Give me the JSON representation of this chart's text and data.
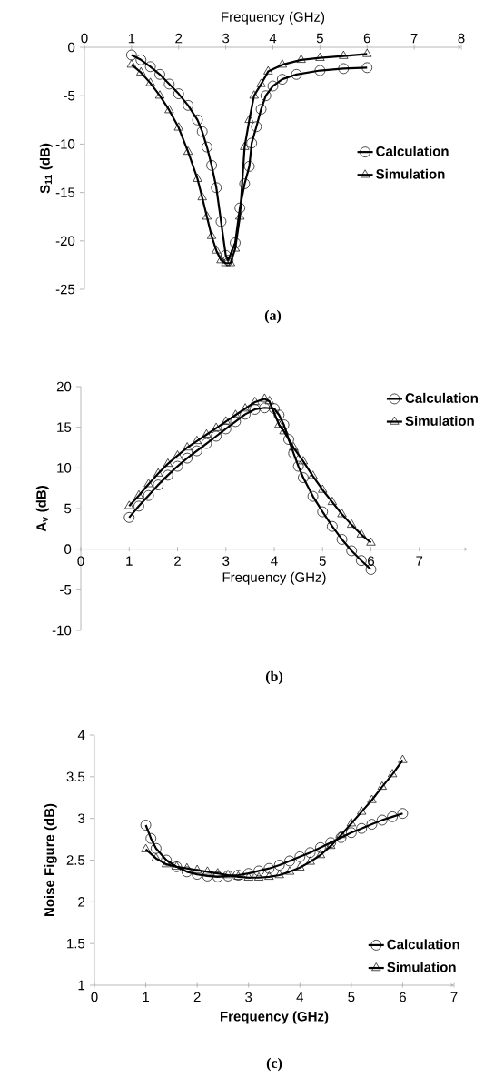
{
  "chart_data": [
    {
      "type": "line",
      "xlabel": "Frequency (GHz)",
      "ylabel": "S$_{11}$ (dB)",
      "xlim": [
        0,
        8
      ],
      "ylim": [
        -25,
        0
      ],
      "xticks": [
        0,
        1,
        2,
        3,
        4,
        5,
        6,
        7,
        8
      ],
      "yticks": [
        -25,
        -20,
        -15,
        -10,
        -5,
        0
      ],
      "legend": "right",
      "annotations": [
        "(a)"
      ],
      "series": [
        {
          "name": "Calculation",
          "color": "#000000",
          "marker": "circle",
          "x": [
            1.0,
            1.2,
            1.4,
            1.6,
            1.8,
            2.0,
            2.2,
            2.4,
            2.5,
            2.6,
            2.7,
            2.8,
            2.9,
            3.0,
            3.05,
            3.2,
            3.3,
            3.4,
            3.5,
            3.55,
            3.65,
            3.75,
            3.85,
            4.0,
            4.2,
            4.5,
            5.0,
            5.5,
            6.0
          ],
          "values": [
            -0.8,
            -1.3,
            -2.0,
            -2.8,
            -3.8,
            -4.8,
            -6.0,
            -7.5,
            -8.7,
            -10.3,
            -12.2,
            -14.5,
            -18.0,
            -21.5,
            -22.0,
            -20.2,
            -16.6,
            -14.1,
            -12.3,
            -9.9,
            -8.2,
            -6.4,
            -5.0,
            -4.0,
            -3.3,
            -2.8,
            -2.4,
            -2.2,
            -2.1
          ]
        },
        {
          "name": "Simulation",
          "color": "#000000",
          "marker": "triangle",
          "x": [
            1.0,
            1.2,
            1.4,
            1.6,
            1.8,
            2.0,
            2.2,
            2.4,
            2.5,
            2.6,
            2.7,
            2.8,
            2.9,
            3.0,
            3.1,
            3.2,
            3.3,
            3.4,
            3.5,
            3.6,
            3.75,
            3.9,
            4.2,
            4.6,
            5.0,
            5.5,
            6.0
          ],
          "values": [
            -1.8,
            -2.6,
            -3.7,
            -5.0,
            -6.5,
            -8.3,
            -10.8,
            -13.6,
            -15.5,
            -17.5,
            -19.5,
            -21.0,
            -22.0,
            -22.3,
            -22.3,
            -20.8,
            -17.5,
            -10.3,
            -7.5,
            -5.0,
            -3.8,
            -2.5,
            -1.8,
            -1.3,
            -1.1,
            -0.9,
            -0.7
          ]
        }
      ]
    },
    {
      "type": "line",
      "xlabel": "Frequency (GHz)",
      "ylabel": "A$_{v}$ (dB)",
      "xlim": [
        0,
        8
      ],
      "ylim": [
        -10,
        20
      ],
      "xticks": [
        0,
        1,
        2,
        3,
        4,
        5,
        6,
        7
      ],
      "yticks": [
        -10,
        -5,
        0,
        5,
        10,
        15,
        20
      ],
      "legend": "top right",
      "annotations": [
        "(b)"
      ],
      "series": [
        {
          "name": "Calculation",
          "color": "#000000",
          "marker": "circle",
          "x": [
            1.0,
            1.2,
            1.4,
            1.6,
            1.8,
            2.0,
            2.2,
            2.4,
            2.6,
            2.8,
            3.0,
            3.2,
            3.4,
            3.6,
            3.8,
            4.0,
            4.1,
            4.2,
            4.3,
            4.4,
            4.5,
            4.6,
            4.8,
            5.0,
            5.2,
            5.4,
            5.6,
            5.8,
            6.0
          ],
          "values": [
            3.9,
            5.3,
            6.6,
            7.9,
            9.1,
            10.2,
            11.2,
            12.1,
            13.0,
            13.9,
            14.8,
            15.7,
            16.6,
            17.2,
            17.4,
            17.3,
            16.5,
            15.3,
            13.5,
            11.8,
            10.2,
            8.8,
            6.5,
            4.6,
            2.8,
            1.2,
            -0.2,
            -1.4,
            -2.5
          ]
        },
        {
          "name": "Simulation",
          "color": "#000000",
          "marker": "triangle",
          "x": [
            1.0,
            1.2,
            1.4,
            1.6,
            1.8,
            2.0,
            2.2,
            2.4,
            2.6,
            2.8,
            3.0,
            3.2,
            3.4,
            3.6,
            3.8,
            3.9,
            4.0,
            4.1,
            4.2,
            4.4,
            4.6,
            4.8,
            5.0,
            5.2,
            5.4,
            5.6,
            5.8,
            6.0
          ],
          "values": [
            5.3,
            6.6,
            8.0,
            9.3,
            10.5,
            11.5,
            12.5,
            13.3,
            14.1,
            14.9,
            15.7,
            16.5,
            17.3,
            18.1,
            18.5,
            18.2,
            null,
            15.3,
            14.5,
            12.5,
            10.8,
            9.0,
            7.3,
            5.8,
            4.3,
            3.0,
            1.8,
            0.8
          ]
        }
      ]
    },
    {
      "type": "line",
      "xlabel": "Frequency (GHz)",
      "ylabel": "Noise Figure (dB)",
      "xlim": [
        0,
        7
      ],
      "ylim": [
        1,
        4
      ],
      "xticks": [
        0,
        1,
        2,
        3,
        4,
        5,
        6,
        7
      ],
      "yticks": [
        1,
        1.5,
        2,
        2.5,
        3,
        3.5,
        4
      ],
      "legend": "bottom right",
      "annotations": [
        "(c)"
      ],
      "series": [
        {
          "name": "Calculation",
          "color": "#000000",
          "marker": "circle",
          "x": [
            1.0,
            1.1,
            1.2,
            1.4,
            1.6,
            1.8,
            2.0,
            2.2,
            2.4,
            2.6,
            2.8,
            3.0,
            3.2,
            3.4,
            3.6,
            3.8,
            4.0,
            4.2,
            4.4,
            4.6,
            4.8,
            5.0,
            5.2,
            5.4,
            5.6,
            5.8,
            6.0
          ],
          "values": [
            2.92,
            2.76,
            2.64,
            2.5,
            2.42,
            2.36,
            2.33,
            2.31,
            2.3,
            2.31,
            2.32,
            2.34,
            2.37,
            2.4,
            2.44,
            2.49,
            2.54,
            2.59,
            2.65,
            2.71,
            2.77,
            2.83,
            2.88,
            2.93,
            2.98,
            3.02,
            3.06
          ]
        },
        {
          "name": "Simulation",
          "color": "#000000",
          "marker": "triangle",
          "x": [
            1.0,
            1.2,
            1.4,
            1.6,
            1.8,
            2.0,
            2.2,
            2.4,
            2.6,
            2.8,
            3.0,
            3.2,
            3.4,
            3.6,
            3.8,
            4.0,
            4.2,
            4.4,
            4.6,
            4.8,
            5.0,
            5.2,
            5.4,
            5.6,
            5.8,
            6.0
          ],
          "values": [
            2.63,
            2.52,
            2.45,
            2.42,
            2.4,
            2.38,
            2.36,
            2.34,
            2.32,
            2.3,
            2.29,
            2.29,
            2.3,
            2.32,
            2.36,
            2.41,
            2.48,
            2.56,
            2.67,
            2.8,
            2.94,
            3.08,
            3.22,
            3.38,
            3.53,
            3.7
          ]
        }
      ]
    }
  ]
}
